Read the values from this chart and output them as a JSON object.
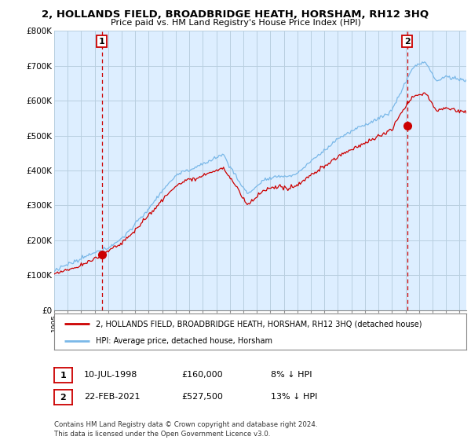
{
  "title": "2, HOLLANDS FIELD, BROADBRIDGE HEATH, HORSHAM, RH12 3HQ",
  "subtitle": "Price paid vs. HM Land Registry's House Price Index (HPI)",
  "ylabel_ticks": [
    "£0",
    "£100K",
    "£200K",
    "£300K",
    "£400K",
    "£500K",
    "£600K",
    "£700K",
    "£800K"
  ],
  "ylim": [
    0,
    800000
  ],
  "xlim_start": 1995.0,
  "xlim_end": 2025.5,
  "sale1_date": 1998.53,
  "sale1_price": 160000,
  "sale2_date": 2021.13,
  "sale2_price": 527500,
  "hpi_color": "#7ab8e8",
  "price_color": "#cc0000",
  "marker_color": "#cc0000",
  "plot_bg_color": "#ddeeff",
  "legend_label1": "2, HOLLANDS FIELD, BROADBRIDGE HEATH, HORSHAM, RH12 3HQ (detached house)",
  "legend_label2": "HPI: Average price, detached house, Horsham",
  "table_row1": [
    "1",
    "10-JUL-1998",
    "£160,000",
    "8% ↓ HPI"
  ],
  "table_row2": [
    "2",
    "22-FEB-2021",
    "£527,500",
    "13% ↓ HPI"
  ],
  "footer": "Contains HM Land Registry data © Crown copyright and database right 2024.\nThis data is licensed under the Open Government Licence v3.0.",
  "background_color": "#ffffff",
  "grid_color": "#b8cfe0"
}
